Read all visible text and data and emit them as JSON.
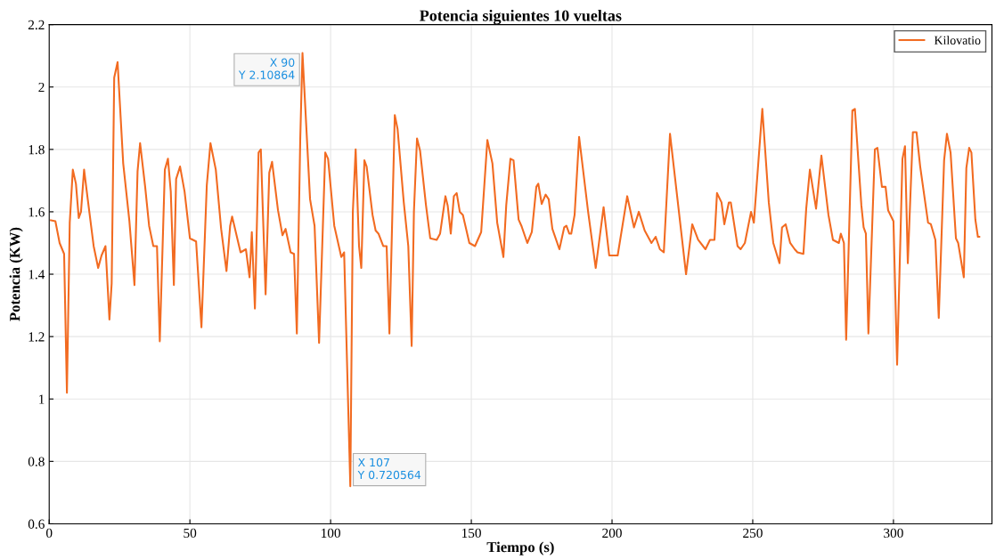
{
  "chart_data": {
    "type": "line",
    "title": "Potencia siguientes 10 vueltas",
    "xlabel": "Tiempo (s)",
    "ylabel": "Potencia (KW)",
    "series": [
      {
        "name": "Kilovatio",
        "color": "#f26b21",
        "x": [
          0.6,
          2.2,
          3.7,
          5.3,
          6.3,
          7.3,
          8.4,
          9.5,
          10.5,
          11.3,
          12.4,
          13.7,
          15.8,
          17.4,
          18.6,
          20,
          21.4,
          22.2,
          23.1,
          24.3,
          26.3,
          28.5,
          30.3,
          31.4,
          32.3,
          34.1,
          35.5,
          37,
          38.3,
          39.3,
          41.1,
          42.2,
          43.2,
          44.3,
          45.1,
          46.5,
          48.1,
          50,
          52.2,
          54.1,
          56,
          57.3,
          59.2,
          61.1,
          63,
          64.3,
          65,
          68,
          69.9,
          71.2,
          72,
          73.1,
          74.4,
          75.2,
          76.9,
          78.2,
          79.2,
          81.3,
          82.9,
          84,
          85.8,
          87,
          88,
          89.2,
          90,
          92.7,
          94.3,
          95.9,
          98.1,
          99.1,
          101.3,
          103.8,
          104.8,
          107,
          107.9,
          108.9,
          110.1,
          110.9,
          112,
          112.8,
          114.9,
          116,
          117,
          118.7,
          119.9,
          120.9,
          122.8,
          123.8,
          126,
          127.6,
          128.8,
          129.6,
          130.7,
          131.8,
          133.9,
          135.4,
          137.7,
          138.9,
          140.8,
          141.6,
          142.7,
          143.8,
          144.8,
          145.9,
          147,
          149.3,
          151.3,
          153.5,
          155.7,
          157.5,
          159.2,
          161.4,
          162.4,
          163.9,
          165,
          166.8,
          167.8,
          169.9,
          171.5,
          173.1,
          173.8,
          175,
          176.4,
          177.5,
          178.8,
          181.3,
          183,
          183.8,
          184.8,
          185.5,
          186.7,
          188.3,
          191.5,
          194.2,
          197,
          199,
          202,
          205.4,
          207.8,
          209.5,
          211.6,
          214,
          215.5,
          217,
          218.4,
          220.6,
          226.3,
          228.5,
          230.6,
          233.2,
          234.8,
          236.4,
          237.3,
          238.9,
          239.9,
          241.5,
          242.2,
          244.6,
          245.7,
          247.2,
          249.4,
          250.4,
          253.4,
          255.7,
          257.3,
          259.5,
          260.4,
          261.7,
          263.3,
          264.9,
          265.9,
          268,
          269,
          270.3,
          272.5,
          274.4,
          276.9,
          278.5,
          280.6,
          281.3,
          282.4,
          283.2,
          285.4,
          286.3,
          288.6,
          289.4,
          290.2,
          291.1,
          293.4,
          294.3,
          295.9,
          297.2,
          298.1,
          300,
          301.3,
          303.2,
          304.1,
          305.1,
          306.9,
          308.2,
          309.5,
          312.3,
          313.3,
          314.9,
          316.1,
          318,
          319,
          320.3,
          322.2,
          323,
          325,
          325.9,
          326.9,
          327.7,
          329.1,
          330,
          330.5
        ],
        "values": [
          1.573,
          1.57,
          1.5,
          1.465,
          1.02,
          1.565,
          1.735,
          1.69,
          1.58,
          1.6,
          1.735,
          1.64,
          1.49,
          1.42,
          1.46,
          1.49,
          1.255,
          1.37,
          2.03,
          2.08,
          1.755,
          1.57,
          1.365,
          1.73,
          1.82,
          1.68,
          1.555,
          1.49,
          1.49,
          1.185,
          1.735,
          1.77,
          1.665,
          1.365,
          1.705,
          1.745,
          1.665,
          1.515,
          1.505,
          1.23,
          1.685,
          1.82,
          1.735,
          1.545,
          1.41,
          1.555,
          1.585,
          1.47,
          1.48,
          1.39,
          1.535,
          1.29,
          1.79,
          1.8,
          1.335,
          1.725,
          1.76,
          1.605,
          1.525,
          1.545,
          1.47,
          1.465,
          1.21,
          1.83,
          2.10864,
          1.64,
          1.555,
          1.18,
          1.79,
          1.77,
          1.555,
          1.455,
          1.47,
          0.720564,
          1.6,
          1.8,
          1.49,
          1.42,
          1.765,
          1.745,
          1.59,
          1.54,
          1.53,
          1.49,
          1.49,
          1.21,
          1.91,
          1.865,
          1.63,
          1.49,
          1.17,
          1.6,
          1.835,
          1.795,
          1.62,
          1.515,
          1.51,
          1.53,
          1.65,
          1.62,
          1.53,
          1.65,
          1.66,
          1.6,
          1.59,
          1.5,
          1.49,
          1.535,
          1.83,
          1.755,
          1.565,
          1.455,
          1.62,
          1.77,
          1.765,
          1.575,
          1.555,
          1.5,
          1.535,
          1.68,
          1.69,
          1.625,
          1.655,
          1.64,
          1.545,
          1.48,
          1.55,
          1.555,
          1.53,
          1.53,
          1.59,
          1.84,
          1.6,
          1.42,
          1.615,
          1.46,
          1.46,
          1.65,
          1.55,
          1.6,
          1.54,
          1.5,
          1.52,
          1.48,
          1.47,
          1.85,
          1.4,
          1.56,
          1.51,
          1.48,
          1.51,
          1.51,
          1.66,
          1.63,
          1.56,
          1.63,
          1.63,
          1.49,
          1.48,
          1.5,
          1.6,
          1.565,
          1.93,
          1.63,
          1.5,
          1.435,
          1.55,
          1.56,
          1.5,
          1.48,
          1.47,
          1.465,
          1.61,
          1.735,
          1.61,
          1.78,
          1.59,
          1.51,
          1.5,
          1.53,
          1.5,
          1.19,
          1.925,
          1.93,
          1.62,
          1.55,
          1.53,
          1.21,
          1.8,
          1.805,
          1.68,
          1.68,
          1.605,
          1.57,
          1.11,
          1.77,
          1.81,
          1.435,
          1.855,
          1.855,
          1.745,
          1.565,
          1.56,
          1.51,
          1.26,
          1.765,
          1.85,
          1.79,
          1.515,
          1.5,
          1.39,
          1.74,
          1.805,
          1.79,
          1.575,
          1.52,
          1.52
        ]
      }
    ],
    "xlim": [
      0,
      335
    ],
    "ylim": [
      0.6,
      2.2
    ],
    "xticks": [
      0,
      50,
      100,
      150,
      200,
      250,
      300
    ],
    "yticks": [
      0.6,
      0.8,
      1,
      1.2,
      1.4,
      1.6,
      1.8,
      2,
      2.2
    ],
    "grid": true,
    "legend": "top right",
    "annotations": [
      {
        "text": "X 90\nY 2.10864",
        "x": 90,
        "y": 2.10864
      },
      {
        "text": "X 107\nY 0.720564",
        "x": 107,
        "y": 0.720564
      }
    ]
  }
}
